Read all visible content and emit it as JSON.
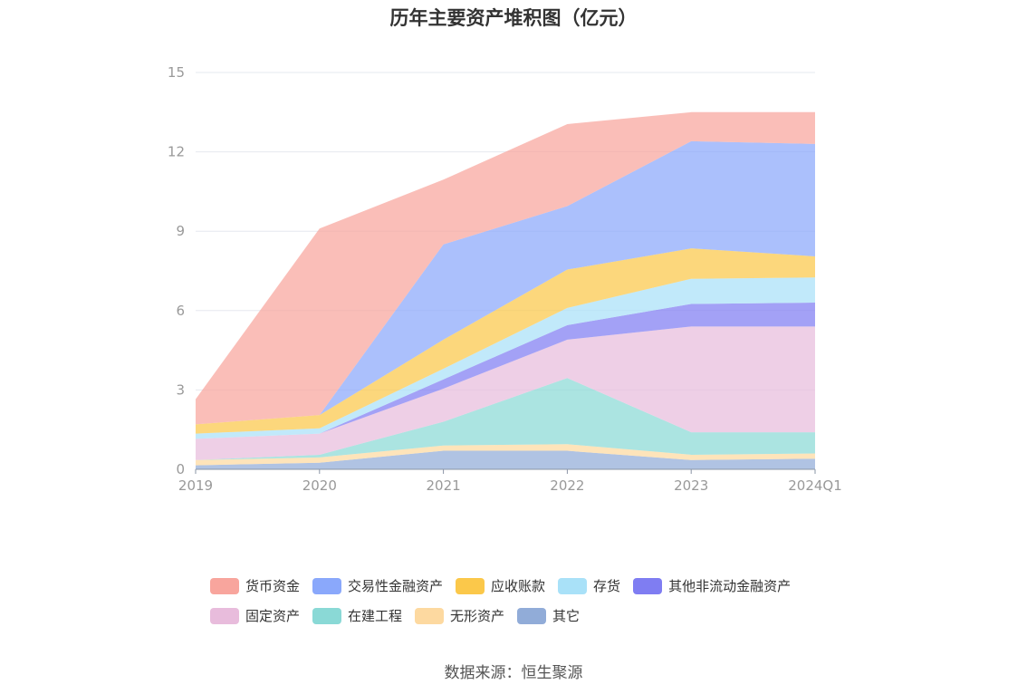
{
  "title": "历年主要资产堆积图（亿元）",
  "source": "数据来源：恒生聚源",
  "chart_data": {
    "type": "area",
    "stacked": true,
    "title": "历年主要资产堆积图（亿元）",
    "categories": [
      "2019",
      "2020",
      "2021",
      "2022",
      "2023",
      "2024Q1"
    ],
    "ylim": [
      0,
      15
    ],
    "yticks": [
      0,
      3,
      6,
      9,
      12,
      15
    ],
    "grid": true,
    "legend_position": "bottom",
    "series": [
      {
        "name": "其它",
        "color": "#91acd8",
        "values": [
          0.15,
          0.25,
          0.7,
          0.7,
          0.35,
          0.4
        ]
      },
      {
        "name": "无形资产",
        "color": "#fdd9a0",
        "values": [
          0.2,
          0.2,
          0.2,
          0.25,
          0.2,
          0.2
        ]
      },
      {
        "name": "在建工程",
        "color": "#8ad9d6",
        "values": [
          0.0,
          0.1,
          0.9,
          2.5,
          0.85,
          0.8
        ]
      },
      {
        "name": "固定资产",
        "color": "#e8bcdc",
        "values": [
          0.8,
          0.8,
          1.25,
          1.45,
          4.0,
          4.0
        ]
      },
      {
        "name": "其他非流动金融资产",
        "color": "#7f7df2",
        "values": [
          0.0,
          0.0,
          0.35,
          0.55,
          0.85,
          0.9
        ]
      },
      {
        "name": "存货",
        "color": "#a9e1f8",
        "values": [
          0.2,
          0.2,
          0.4,
          0.65,
          0.95,
          0.95
        ]
      },
      {
        "name": "应收账款",
        "color": "#fbc84a",
        "values": [
          0.35,
          0.5,
          1.1,
          1.45,
          1.15,
          0.8
        ]
      },
      {
        "name": "交易性金融资产",
        "color": "#8aa8fb",
        "values": [
          0.0,
          0.0,
          3.6,
          2.4,
          4.05,
          4.25
        ]
      },
      {
        "name": "货币资金",
        "color": "#f8a59d",
        "values": [
          0.95,
          7.05,
          2.45,
          3.1,
          1.1,
          1.2
        ]
      }
    ]
  },
  "legend_rows": [
    [
      "货币资金",
      "交易性金融资产",
      "应收账款",
      "存货",
      "其他非流动金融资产"
    ],
    [
      "固定资产",
      "在建工程",
      "无形资产",
      "其它"
    ]
  ]
}
